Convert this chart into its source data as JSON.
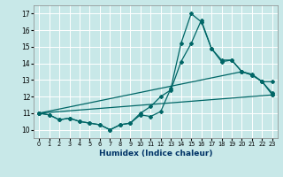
{
  "xlabel": "Humidex (Indice chaleur)",
  "bg_color": "#c8e8e8",
  "line_color": "#006666",
  "grid_color": "#ffffff",
  "xlim": [
    -0.5,
    23.5
  ],
  "ylim": [
    9.5,
    17.5
  ],
  "xticks": [
    0,
    1,
    2,
    3,
    4,
    5,
    6,
    7,
    8,
    9,
    10,
    11,
    12,
    13,
    14,
    15,
    16,
    17,
    18,
    19,
    20,
    21,
    22,
    23
  ],
  "yticks": [
    10,
    11,
    12,
    13,
    14,
    15,
    16,
    17
  ],
  "series1_x": [
    0,
    1,
    2,
    3,
    4,
    5,
    6,
    7,
    8,
    9,
    10,
    11,
    12,
    13,
    14,
    15,
    16,
    17,
    18,
    19,
    20,
    21,
    22,
    23
  ],
  "series1_y": [
    11.0,
    10.9,
    10.6,
    10.7,
    10.5,
    10.4,
    10.3,
    10.0,
    10.3,
    10.4,
    10.9,
    10.8,
    11.1,
    12.5,
    15.2,
    17.0,
    16.5,
    14.9,
    14.2,
    14.2,
    13.5,
    13.3,
    12.9,
    12.1
  ],
  "series2_x": [
    0,
    1,
    2,
    3,
    4,
    5,
    6,
    7,
    8,
    9,
    10,
    11,
    12,
    13,
    14,
    15,
    16,
    17,
    18,
    19,
    20,
    21,
    22,
    23
  ],
  "series2_y": [
    11.0,
    10.9,
    10.6,
    10.7,
    10.5,
    10.4,
    10.3,
    10.0,
    10.3,
    10.4,
    11.0,
    11.4,
    12.0,
    12.4,
    14.1,
    15.2,
    16.6,
    14.9,
    14.1,
    14.2,
    13.5,
    13.3,
    12.9,
    12.2
  ],
  "series3_x": [
    0,
    20,
    21,
    22,
    23
  ],
  "series3_y": [
    11.0,
    13.5,
    13.35,
    12.9,
    12.9
  ],
  "series4_x": [
    0,
    23
  ],
  "series4_y": [
    11.0,
    12.1
  ]
}
